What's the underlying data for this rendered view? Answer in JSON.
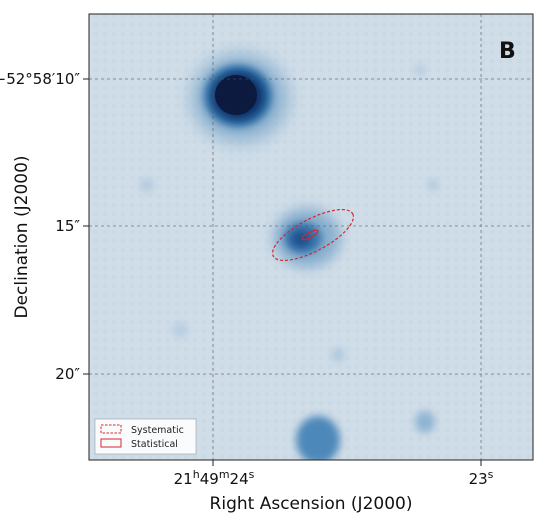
{
  "panel_label": "B",
  "axes": {
    "x_title": "Right Ascension  (J2000)",
    "y_title": "Declination  (J2000)",
    "x_ticks": [
      {
        "h": "21",
        "m": "49",
        "s": "24",
        "sup_h": "h",
        "sup_m": "m",
        "sup_s": "s"
      },
      {
        "label": "23",
        "sup": "s"
      }
    ],
    "y_ticks": [
      "−52°58′10″",
      "15″",
      "20″"
    ],
    "grid": true,
    "grid_style": "dashed"
  },
  "legend": {
    "entries": [
      {
        "label": "Systematic",
        "style": "dashed",
        "color": "#d6262e"
      },
      {
        "label": "Statistical",
        "style": "solid",
        "color": "#d6262e"
      }
    ]
  },
  "colors": {
    "background": "#cfdde8",
    "colormap_dark": "#0b1a3e",
    "colormap_mid": "#2c6fa6",
    "ellipse": "#d6262e"
  }
}
